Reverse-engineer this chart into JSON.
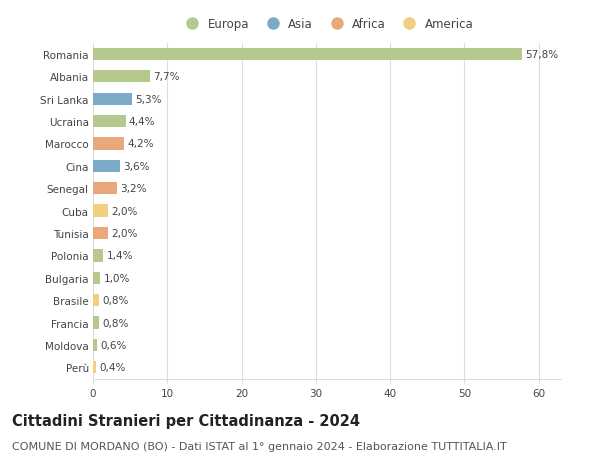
{
  "countries": [
    "Romania",
    "Albania",
    "Sri Lanka",
    "Ucraina",
    "Marocco",
    "Cina",
    "Senegal",
    "Cuba",
    "Tunisia",
    "Polonia",
    "Bulgaria",
    "Brasile",
    "Francia",
    "Moldova",
    "Perù"
  ],
  "values": [
    57.8,
    7.7,
    5.3,
    4.4,
    4.2,
    3.6,
    3.2,
    2.0,
    2.0,
    1.4,
    1.0,
    0.8,
    0.8,
    0.6,
    0.4
  ],
  "labels": [
    "57,8%",
    "7,7%",
    "5,3%",
    "4,4%",
    "4,2%",
    "3,6%",
    "3,2%",
    "2,0%",
    "2,0%",
    "1,4%",
    "1,0%",
    "0,8%",
    "0,8%",
    "0,6%",
    "0,4%"
  ],
  "continents": [
    "Europa",
    "Europa",
    "Asia",
    "Europa",
    "Africa",
    "Asia",
    "Africa",
    "America",
    "Africa",
    "Europa",
    "Europa",
    "America",
    "Europa",
    "Europa",
    "America"
  ],
  "colors": {
    "Europa": "#b5c98e",
    "Asia": "#7aaac8",
    "Africa": "#e8a87c",
    "America": "#f0d080"
  },
  "xlim": [
    0,
    63
  ],
  "xticks": [
    0,
    10,
    20,
    30,
    40,
    50,
    60
  ],
  "title": "Cittadini Stranieri per Cittadinanza - 2024",
  "subtitle": "COMUNE DI MORDANO (BO) - Dati ISTAT al 1° gennaio 2024 - Elaborazione TUTTITALIA.IT",
  "bg_color": "#ffffff",
  "grid_color": "#dddddd",
  "bar_height": 0.55,
  "title_fontsize": 10.5,
  "subtitle_fontsize": 8,
  "label_fontsize": 7.5,
  "tick_fontsize": 7.5,
  "legend_fontsize": 8.5,
  "legend_order": [
    "Europa",
    "Asia",
    "Africa",
    "America"
  ]
}
